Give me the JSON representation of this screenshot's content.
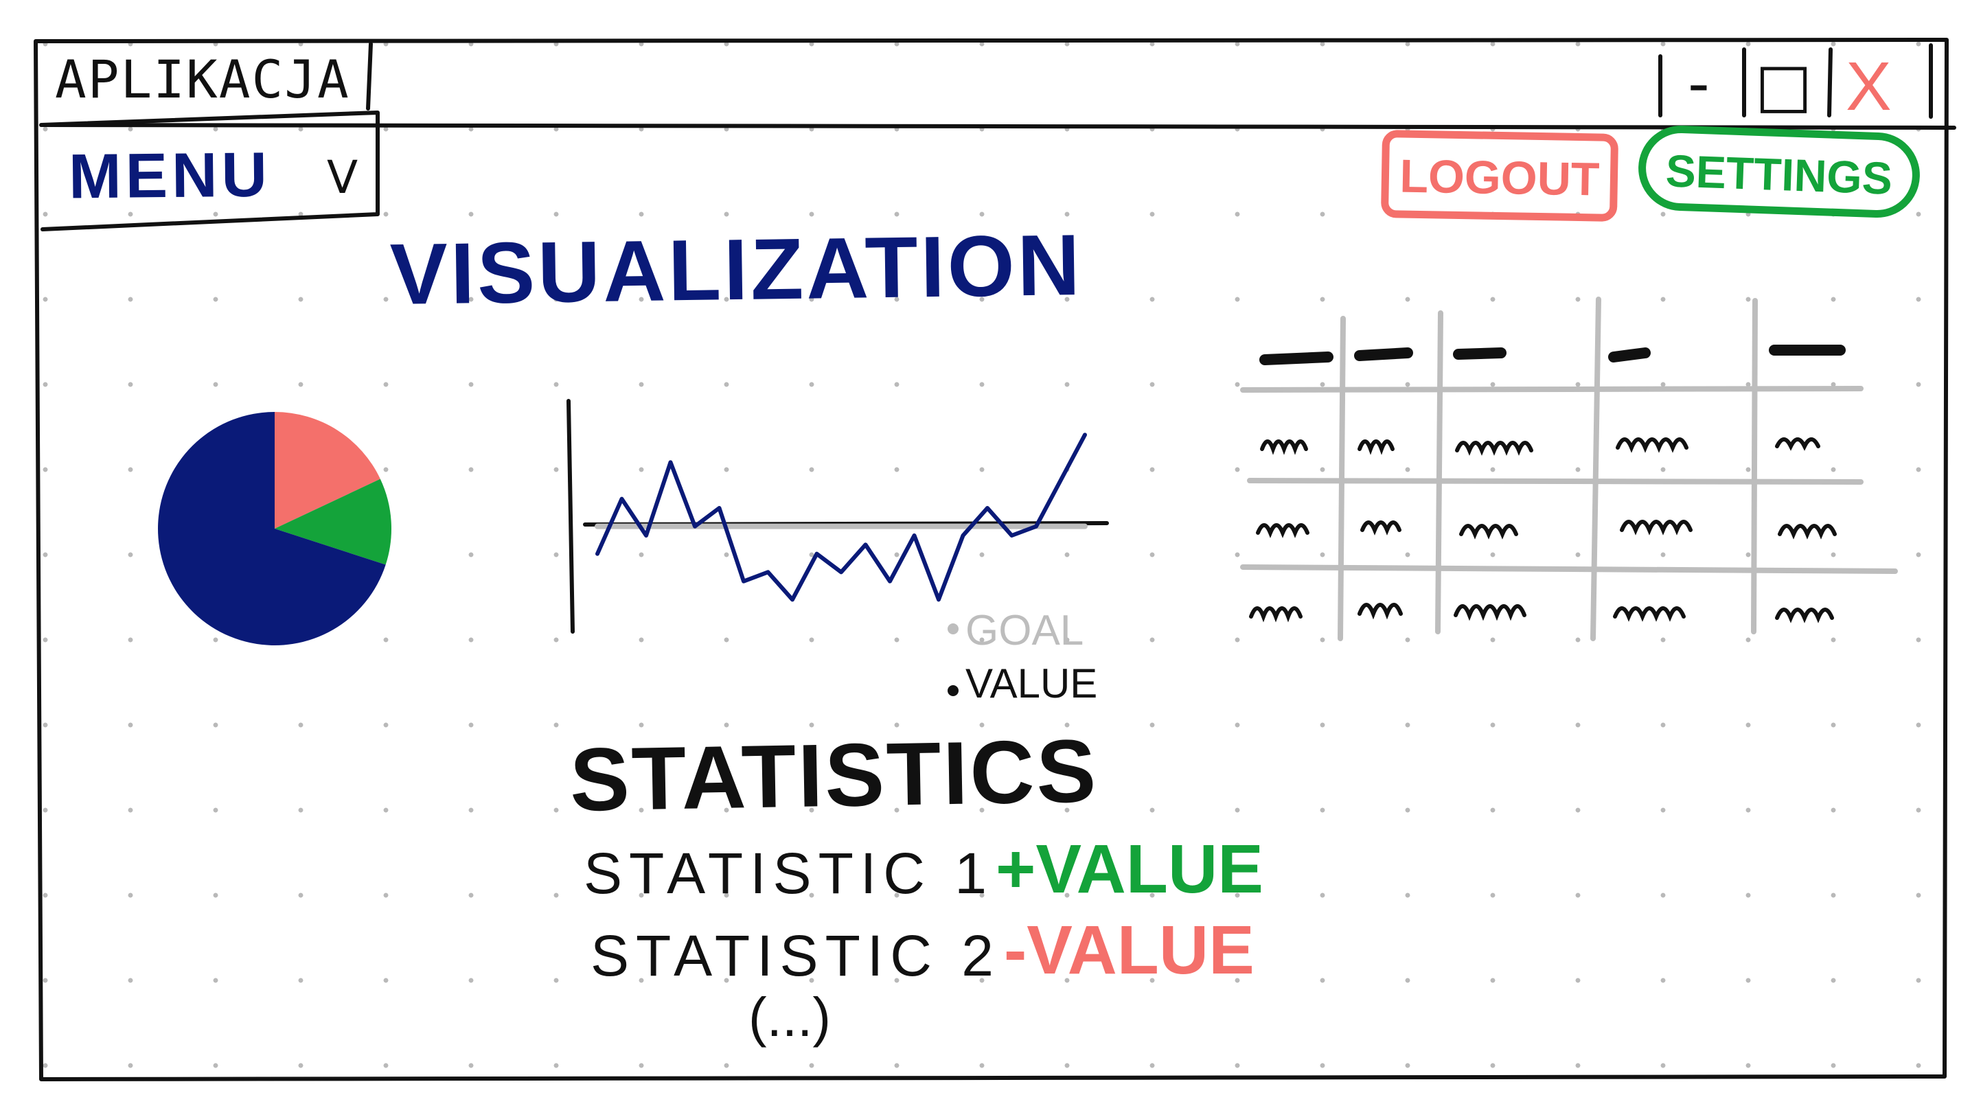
{
  "window": {
    "title": "APLIKACJA",
    "controls": {
      "minimize_glyph": "-",
      "maximize_glyph": "□",
      "close_glyph": "X"
    }
  },
  "menu": {
    "label": "MENU",
    "chevron_glyph": "V"
  },
  "header": {
    "logout_label": "LOGOUT",
    "settings_label": "SETTINGS"
  },
  "visualization": {
    "title": "VISUALIZATION"
  },
  "chart_data": [
    {
      "type": "pie",
      "slices": [
        {
          "value": 70,
          "color": "#0a1a78"
        },
        {
          "value": 18,
          "color": "#f4706b"
        },
        {
          "value": 12,
          "color": "#14a33a"
        }
      ]
    },
    {
      "type": "line",
      "series": [
        {
          "name": "GOAL",
          "color": "#bdbdbd",
          "values": [
            5,
            5,
            5,
            5,
            5,
            5,
            5,
            5,
            5,
            5,
            5,
            5,
            5,
            5,
            5,
            5,
            5,
            5,
            5,
            5,
            5
          ]
        },
        {
          "name": "VALUE",
          "color": "#0a1a78",
          "values": [
            3.5,
            6.5,
            4.5,
            8.5,
            5,
            6,
            2,
            2.5,
            1,
            3.5,
            2.5,
            4,
            2,
            4.5,
            1,
            4.5,
            6,
            4.5,
            5,
            7.5,
            10
          ]
        }
      ],
      "ylim": [
        0,
        12
      ],
      "legend": "bottom-right"
    }
  ],
  "legend": {
    "goal_label": "GOAL",
    "value_label": "VALUE"
  },
  "statistics": {
    "title": "STATISTICS",
    "rows": [
      {
        "label": "STATISTIC 1",
        "value": "+VALUE",
        "color": "#14a33a"
      },
      {
        "label": "STATISTIC 2",
        "value": "-VALUE",
        "color": "#f4706b"
      }
    ],
    "more": "(...)"
  },
  "colors": {
    "navy": "#0a1a78",
    "green": "#14a33a",
    "red": "#f4706b",
    "grid_gray": "#bdbdbd",
    "ink": "#111111"
  }
}
